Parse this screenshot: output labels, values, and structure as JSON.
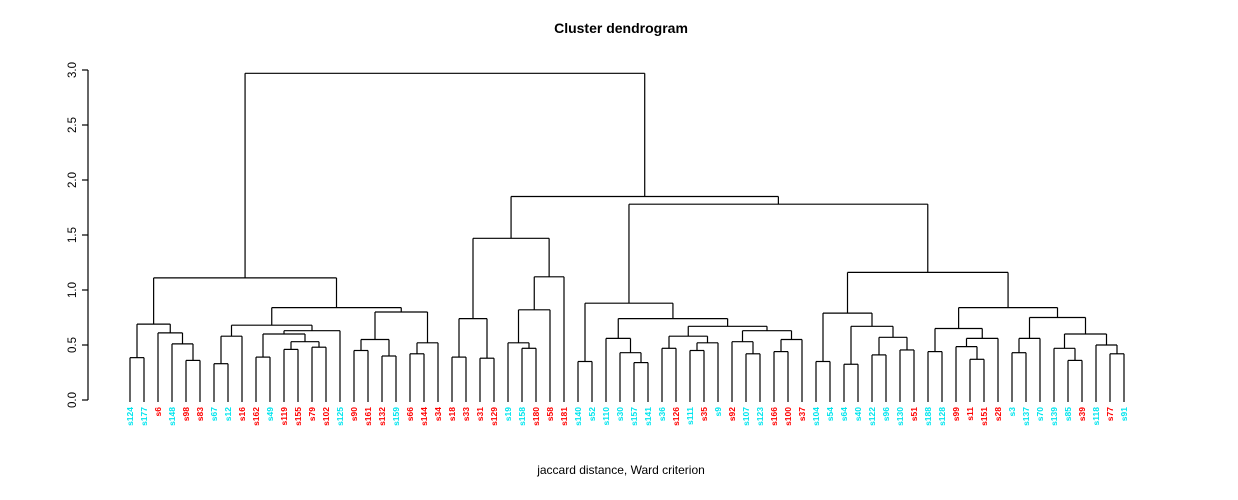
{
  "title": "Cluster dendrogram",
  "xlabel": "jaccard distance, Ward criterion",
  "palette": {
    "cyan": "#00e5ee",
    "red": "#ff0000",
    "line": "#000000"
  },
  "y_axis": {
    "ticks": [
      "0.0",
      "0.5",
      "1.0",
      "1.5",
      "2.0",
      "2.5",
      "3.0"
    ],
    "min": 0,
    "max": 3
  },
  "chart_data": {
    "type": "dendrogram",
    "title": "Cluster dendrogram",
    "subtitle": "jaccard distance, Ward criterion",
    "ylabel_ticks": [
      0.0,
      0.5,
      1.0,
      1.5,
      2.0,
      2.5,
      3.0
    ],
    "ylim": [
      0,
      3
    ],
    "root_height": 2.97,
    "legend": "leaf label colors encode two groups: cyan and red",
    "leaves": [
      {
        "label": "s124",
        "color": "cyan"
      },
      {
        "label": "s177",
        "color": "cyan"
      },
      {
        "label": "s6",
        "color": "red"
      },
      {
        "label": "s148",
        "color": "cyan"
      },
      {
        "label": "s98",
        "color": "red"
      },
      {
        "label": "s83",
        "color": "red"
      },
      {
        "label": "s67",
        "color": "cyan"
      },
      {
        "label": "s12",
        "color": "cyan"
      },
      {
        "label": "s16",
        "color": "red"
      },
      {
        "label": "s162",
        "color": "red"
      },
      {
        "label": "s49",
        "color": "cyan"
      },
      {
        "label": "s119",
        "color": "red"
      },
      {
        "label": "s155",
        "color": "red"
      },
      {
        "label": "s79",
        "color": "red"
      },
      {
        "label": "s102",
        "color": "red"
      },
      {
        "label": "s125",
        "color": "cyan"
      },
      {
        "label": "s90",
        "color": "red"
      },
      {
        "label": "s161",
        "color": "red"
      },
      {
        "label": "s132",
        "color": "red"
      },
      {
        "label": "s159",
        "color": "cyan"
      },
      {
        "label": "s66",
        "color": "red"
      },
      {
        "label": "s144",
        "color": "red"
      },
      {
        "label": "s34",
        "color": "red"
      },
      {
        "label": "s18",
        "color": "red"
      },
      {
        "label": "s33",
        "color": "red"
      },
      {
        "label": "s31",
        "color": "red"
      },
      {
        "label": "s129",
        "color": "red"
      },
      {
        "label": "s19",
        "color": "cyan"
      },
      {
        "label": "s158",
        "color": "cyan"
      },
      {
        "label": "s180",
        "color": "red"
      },
      {
        "label": "s58",
        "color": "red"
      },
      {
        "label": "s181",
        "color": "red"
      },
      {
        "label": "s140",
        "color": "cyan"
      },
      {
        "label": "s52",
        "color": "cyan"
      },
      {
        "label": "s110",
        "color": "cyan"
      },
      {
        "label": "s30",
        "color": "cyan"
      },
      {
        "label": "s157",
        "color": "cyan"
      },
      {
        "label": "s141",
        "color": "cyan"
      },
      {
        "label": "s36",
        "color": "cyan"
      },
      {
        "label": "s126",
        "color": "red"
      },
      {
        "label": "s111",
        "color": "cyan"
      },
      {
        "label": "s35",
        "color": "red"
      },
      {
        "label": "s9",
        "color": "cyan"
      },
      {
        "label": "s92",
        "color": "red"
      },
      {
        "label": "s107",
        "color": "cyan"
      },
      {
        "label": "s123",
        "color": "cyan"
      },
      {
        "label": "s166",
        "color": "red"
      },
      {
        "label": "s100",
        "color": "red"
      },
      {
        "label": "s37",
        "color": "red"
      },
      {
        "label": "s104",
        "color": "cyan"
      },
      {
        "label": "s54",
        "color": "cyan"
      },
      {
        "label": "s64",
        "color": "cyan"
      },
      {
        "label": "s40",
        "color": "cyan"
      },
      {
        "label": "s122",
        "color": "cyan"
      },
      {
        "label": "s96",
        "color": "cyan"
      },
      {
        "label": "s130",
        "color": "cyan"
      },
      {
        "label": "s51",
        "color": "red"
      },
      {
        "label": "s188",
        "color": "cyan"
      },
      {
        "label": "s128",
        "color": "cyan"
      },
      {
        "label": "s99",
        "color": "red"
      },
      {
        "label": "s11",
        "color": "red"
      },
      {
        "label": "s151",
        "color": "red"
      },
      {
        "label": "s28",
        "color": "red"
      },
      {
        "label": "s3",
        "color": "cyan"
      },
      {
        "label": "s137",
        "color": "cyan"
      },
      {
        "label": "s70",
        "color": "cyan"
      },
      {
        "label": "s139",
        "color": "cyan"
      },
      {
        "label": "s85",
        "color": "cyan"
      },
      {
        "label": "s39",
        "color": "red"
      },
      {
        "label": "s118",
        "color": "cyan"
      },
      {
        "label": "s77",
        "color": "red"
      },
      {
        "label": "s91",
        "color": "cyan"
      }
    ],
    "tree": [
      2.97,
      [
        1.11,
        [
          0.69,
          [
            0.385,
            "s124",
            "s177"
          ],
          [
            0.61,
            "s6",
            [
              0.51,
              "s148",
              [
                0.36,
                "s98",
                "s83"
              ]
            ]
          ]
        ],
        [
          0.84,
          [
            0.68,
            [
              0.58,
              [
                0.33,
                "s67",
                "s12"
              ],
              "s16"
            ],
            [
              0.63,
              [
                0.6,
                [
                  0.39,
                  "s162",
                  "s49"
                ],
                [
                  0.53,
                  [
                    0.46,
                    "s119",
                    "s155"
                  ],
                  [
                    0.48,
                    "s79",
                    "s102"
                  ]
                ]
              ],
              "s125"
            ]
          ],
          [
            0.8,
            [
              0.55,
              [
                0.45,
                "s90",
                "s161"
              ],
              [
                0.4,
                "s132",
                "s159"
              ]
            ],
            [
              0.52,
              [
                0.42,
                "s66",
                "s144"
              ],
              "s34"
            ]
          ]
        ]
      ],
      [
        1.85,
        [
          1.47,
          [
            0.74,
            [
              0.39,
              "s18",
              "s33"
            ],
            [
              0.38,
              "s31",
              "s129"
            ]
          ],
          [
            1.12,
            [
              0.82,
              [
                0.52,
                "s19",
                [
                  0.47,
                  "s158",
                  "s180"
                ]
              ],
              "s58"
            ],
            "s181"
          ]
        ],
        [
          1.78,
          [
            0.88,
            [
              0.35,
              "s140",
              "s52"
            ],
            [
              0.74,
              [
                0.56,
                "s110",
                [
                  0.43,
                  "s30",
                  [
                    0.34,
                    "s157",
                    "s141"
                  ]
                ]
              ],
              [
                0.67,
                [
                  0.58,
                  [
                    0.47,
                    "s36",
                    "s126"
                  ],
                  [
                    0.52,
                    [
                      0.45,
                      "s111",
                      "s35"
                    ],
                    "s9"
                  ]
                ],
                [
                  0.63,
                  [
                    0.53,
                    "s92",
                    [
                      0.42,
                      "s107",
                      "s123"
                    ]
                  ],
                  [
                    0.55,
                    [
                      0.44,
                      "s166",
                      "s100"
                    ],
                    "s37"
                  ]
                ]
              ]
            ]
          ],
          [
            1.16,
            [
              0.79,
              [
                0.35,
                "s104",
                "s54"
              ],
              [
                0.67,
                [
                  0.325,
                  "s64",
                  "s40"
                ],
                [
                  0.57,
                  [
                    0.41,
                    "s122",
                    "s96"
                  ],
                  [
                    0.455,
                    "s130",
                    "s51"
                  ]
                ]
              ]
            ],
            [
              0.84,
              [
                0.65,
                [
                  0.44,
                  "s188",
                  "s128"
                ],
                [
                  0.56,
                  [
                    0.485,
                    "s99",
                    [
                      0.37,
                      "s11",
                      "s151"
                    ]
                  ],
                  "s28"
                ]
              ],
              [
                0.75,
                [
                  0.56,
                  [
                    0.43,
                    "s3",
                    "s137"
                  ],
                  "s70"
                ],
                [
                  0.6,
                  [
                    0.47,
                    "s139",
                    [
                      0.36,
                      "s85",
                      "s39"
                    ]
                  ],
                  [
                    0.5,
                    "s118",
                    [
                      0.42,
                      "s77",
                      "s91"
                    ]
                  ]
                ]
              ]
            ]
          ]
        ]
      ]
    ]
  }
}
